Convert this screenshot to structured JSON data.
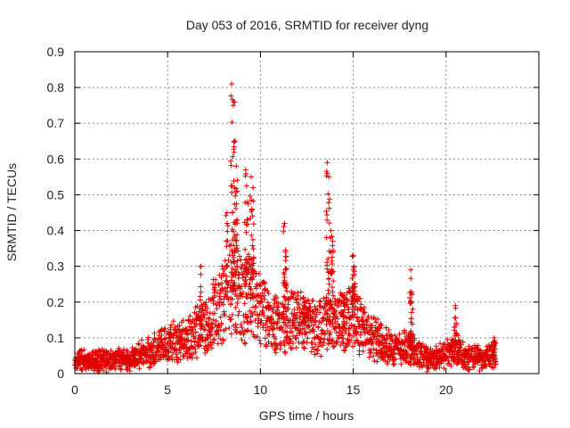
{
  "chart_data": {
    "type": "scatter",
    "title": "Day 053 of 2016, SRMTID for receiver dyng",
    "xlabel": "GPS time / hours",
    "ylabel": "SRMTID / TECUs",
    "xlim": [
      0,
      25
    ],
    "ylim": [
      0,
      0.9
    ],
    "xticks": [
      "0",
      "5",
      "10",
      "15",
      "20"
    ],
    "yticks": [
      "0",
      "0.1",
      "0.2",
      "0.3",
      "0.4",
      "0.5",
      "0.6",
      "0.7",
      "0.8",
      "0.9"
    ],
    "grid": true,
    "marker": "plus",
    "color": "#e00000",
    "envelope": [
      [
        0.0,
        0.04
      ],
      [
        1.0,
        0.035
      ],
      [
        2.0,
        0.04
      ],
      [
        3.0,
        0.04
      ],
      [
        4.0,
        0.06
      ],
      [
        5.0,
        0.08
      ],
      [
        6.0,
        0.1
      ],
      [
        7.0,
        0.13
      ],
      [
        7.5,
        0.17
      ],
      [
        8.0,
        0.2
      ],
      [
        8.5,
        0.24
      ],
      [
        9.0,
        0.2
      ],
      [
        9.5,
        0.22
      ],
      [
        10.0,
        0.18
      ],
      [
        10.5,
        0.14
      ],
      [
        11.0,
        0.13
      ],
      [
        11.5,
        0.15
      ],
      [
        12.0,
        0.15
      ],
      [
        12.5,
        0.14
      ],
      [
        13.0,
        0.12
      ],
      [
        13.5,
        0.14
      ],
      [
        14.0,
        0.15
      ],
      [
        14.5,
        0.14
      ],
      [
        15.0,
        0.17
      ],
      [
        15.5,
        0.12
      ],
      [
        16.0,
        0.1
      ],
      [
        17.0,
        0.07
      ],
      [
        18.0,
        0.07
      ],
      [
        19.0,
        0.04
      ],
      [
        20.0,
        0.05
      ],
      [
        20.5,
        0.07
      ],
      [
        21.0,
        0.05
      ],
      [
        22.0,
        0.04
      ],
      [
        22.7,
        0.05
      ]
    ],
    "peaks": [
      [
        6.8,
        0.3
      ],
      [
        8.2,
        0.45
      ],
      [
        8.45,
        0.81
      ],
      [
        8.55,
        0.76
      ],
      [
        8.6,
        0.65
      ],
      [
        8.7,
        0.58
      ],
      [
        9.2,
        0.57
      ],
      [
        9.3,
        0.48
      ],
      [
        9.5,
        0.55
      ],
      [
        9.6,
        0.52
      ],
      [
        11.3,
        0.42
      ],
      [
        11.35,
        0.34
      ],
      [
        12.4,
        0.2
      ],
      [
        13.6,
        0.59
      ],
      [
        13.7,
        0.55
      ],
      [
        13.8,
        0.4
      ],
      [
        13.9,
        0.37
      ],
      [
        14.5,
        0.22
      ],
      [
        15.0,
        0.33
      ],
      [
        15.05,
        0.3
      ],
      [
        18.1,
        0.29
      ],
      [
        18.15,
        0.22
      ],
      [
        20.5,
        0.19
      ],
      [
        22.6,
        0.1
      ]
    ]
  }
}
